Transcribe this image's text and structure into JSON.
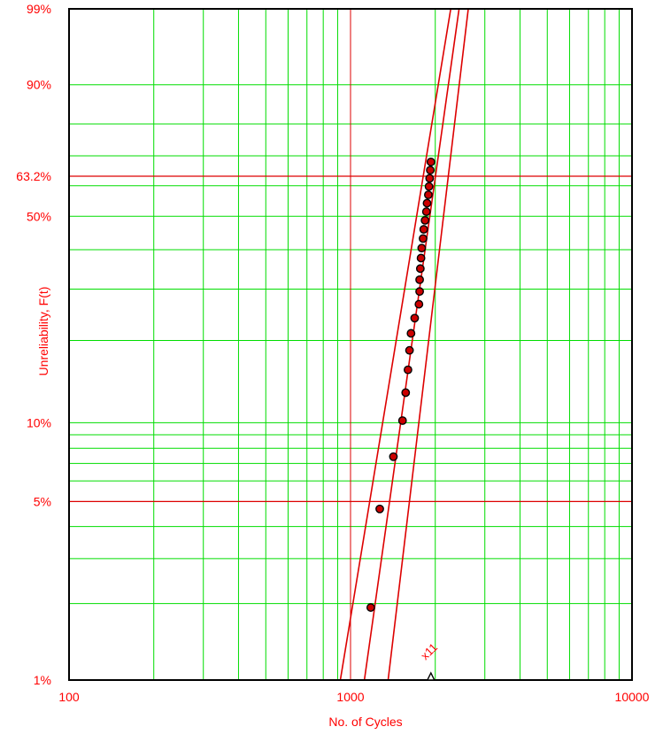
{
  "chart_data": {
    "type": "scatter",
    "title": "",
    "xlabel": "No. of Cycles",
    "ylabel": "Unreliability, F(t)",
    "x_scale": "log",
    "y_scale": "weibull",
    "xlim": [
      100,
      10000
    ],
    "ylim": [
      0.01,
      0.99
    ],
    "grid": true,
    "legend": "none",
    "colors": {
      "axis_text": "#ff0000",
      "grid_minor": "#00dd00",
      "grid_major": "#dd0000",
      "fit_line": "#dd0000",
      "point_fill": "#cc0000",
      "point_edge": "#000000"
    },
    "x_ticks": [
      {
        "value": 100,
        "label": "100"
      },
      {
        "value": 1000,
        "label": "1000"
      },
      {
        "value": 10000,
        "label": "10000"
      }
    ],
    "y_ticks": [
      {
        "value": 0.01,
        "label": "1%"
      },
      {
        "value": 0.05,
        "label": "5%"
      },
      {
        "value": 0.1,
        "label": "10%"
      },
      {
        "value": 0.5,
        "label": "50%"
      },
      {
        "value": 0.632,
        "label": "63.2%"
      },
      {
        "value": 0.9,
        "label": "90%"
      },
      {
        "value": 0.99,
        "label": "99%"
      }
    ],
    "x_grid": [
      100,
      200,
      300,
      400,
      500,
      600,
      700,
      800,
      900,
      1000,
      2000,
      3000,
      4000,
      5000,
      6000,
      7000,
      8000,
      9000,
      10000
    ],
    "x_grid_major": [
      1000
    ],
    "y_grid": [
      0.02,
      0.03,
      0.04,
      0.05,
      0.06,
      0.07,
      0.08,
      0.09,
      0.1,
      0.2,
      0.3,
      0.4,
      0.5,
      0.6,
      0.7,
      0.8,
      0.9
    ],
    "y_grid_major": [
      0.05,
      0.632
    ],
    "points": [
      {
        "x": 1180,
        "y": 0.0193
      },
      {
        "x": 1270,
        "y": 0.0468
      },
      {
        "x": 1420,
        "y": 0.0743
      },
      {
        "x": 1530,
        "y": 0.1018
      },
      {
        "x": 1570,
        "y": 0.1294
      },
      {
        "x": 1600,
        "y": 0.1569
      },
      {
        "x": 1620,
        "y": 0.1844
      },
      {
        "x": 1640,
        "y": 0.2119
      },
      {
        "x": 1690,
        "y": 0.2394
      },
      {
        "x": 1750,
        "y": 0.267
      },
      {
        "x": 1760,
        "y": 0.2945
      },
      {
        "x": 1760,
        "y": 0.322
      },
      {
        "x": 1770,
        "y": 0.3495
      },
      {
        "x": 1780,
        "y": 0.3771
      },
      {
        "x": 1790,
        "y": 0.4046
      },
      {
        "x": 1810,
        "y": 0.4321
      },
      {
        "x": 1820,
        "y": 0.4596
      },
      {
        "x": 1840,
        "y": 0.4872
      },
      {
        "x": 1860,
        "y": 0.5147
      },
      {
        "x": 1870,
        "y": 0.5422
      },
      {
        "x": 1890,
        "y": 0.5697
      },
      {
        "x": 1900,
        "y": 0.5973
      },
      {
        "x": 1910,
        "y": 0.6248
      },
      {
        "x": 1920,
        "y": 0.6523
      },
      {
        "x": 1930,
        "y": 0.6798
      }
    ],
    "lines": [
      {
        "name": "",
        "points": [
          {
            "x": 1360,
            "y": 0.01
          },
          {
            "x": 2620,
            "y": 0.99
          }
        ]
      },
      {
        "name": "",
        "points": [
          {
            "x": 1120,
            "y": 0.01
          },
          {
            "x": 2430,
            "y": 0.99
          }
        ]
      },
      {
        "name": "",
        "points": [
          {
            "x": 920,
            "y": 0.01
          },
          {
            "x": 2270,
            "y": 0.99
          }
        ]
      }
    ],
    "suspension": {
      "x": 1930,
      "y": 0.01,
      "label": "x11"
    }
  }
}
